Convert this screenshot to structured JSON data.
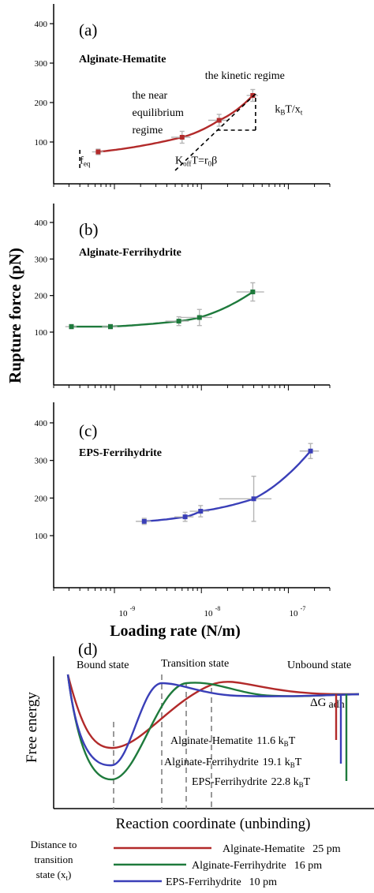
{
  "ylabel": "Rupture force (pN)",
  "xlabel": "Loading rate (N/m)",
  "yticks": [
    "100",
    "200",
    "300",
    "400"
  ],
  "xticks": [
    "10",
    "10",
    "10"
  ],
  "xtick_exps": [
    "-9",
    "-8",
    "-7"
  ],
  "colors": {
    "hematite": "#b22a2a",
    "ferrihydrite": "#1e7a3c",
    "eps": "#3a3fb8",
    "errorbar": "#b5b5b5"
  },
  "chart_data": [
    {
      "type": "scatter",
      "panel_label": "(a)",
      "title": "Alginate-Hematite",
      "xscale": "log",
      "xlim": [
        2e-10,
        3e-07
      ],
      "ylim": [
        20,
        450
      ],
      "series": [
        {
          "name": "Alginate-Hematite",
          "color": "#b22a2a",
          "x": [
            6.5e-10,
            6e-09,
            1.6e-08,
            3.9e-08
          ],
          "y": [
            75,
            112,
            155,
            218
          ],
          "yerr": [
            7,
            15,
            15,
            15
          ],
          "xerr_rel": [
            0.15,
            0.25,
            0.25,
            0.15
          ]
        }
      ],
      "annotations": [
        {
          "text": "the near",
          "x": 1.6e-09,
          "y": 210
        },
        {
          "text": "equilibrium",
          "x": 1.6e-09,
          "y": 166
        },
        {
          "text": "regime",
          "x": 1.6e-09,
          "y": 122
        },
        {
          "text": "the kinetic regime",
          "x": 1.1e-08,
          "y": 260
        },
        {
          "text": "f",
          "sub": "eq",
          "x": 4e-10,
          "y": 45
        },
        {
          "text": "K",
          "sub": "off",
          "rest": "T=r",
          "sub2": "0",
          "rest2": "β",
          "x": 5e-09,
          "y": 45
        },
        {
          "text": "k",
          "sub": "B",
          "rest": "T/x",
          "sub2": "t",
          "x": 7e-08,
          "y": 175
        }
      ]
    },
    {
      "type": "scatter",
      "panel_label": "(b)",
      "title": "Alginate-Ferrihydrite",
      "xscale": "log",
      "xlim": [
        2e-10,
        3e-07
      ],
      "ylim": [
        20,
        450
      ],
      "series": [
        {
          "name": "Alginate-Ferrihydrite",
          "color": "#1e7a3c",
          "x": [
            3.2e-10,
            9e-10,
            5.5e-09,
            9.5e-09,
            3.9e-08
          ],
          "y": [
            115,
            115,
            130,
            140,
            210
          ],
          "yerr": [
            6,
            6,
            12,
            22,
            25
          ],
          "xerr_rel": [
            0.15,
            0.2,
            0.3,
            0.4,
            0.35
          ]
        }
      ]
    },
    {
      "type": "scatter",
      "panel_label": "(c)",
      "title": "EPS-Ferrihydrite",
      "xscale": "log",
      "xlim": [
        2e-10,
        3e-07
      ],
      "ylim": [
        20,
        450
      ],
      "series": [
        {
          "name": "EPS-Ferrihydrite",
          "color": "#3a3fb8",
          "x": [
            2.2e-09,
            6.5e-09,
            9.8e-09,
            4e-08,
            1.8e-07
          ],
          "y": [
            138,
            150,
            165,
            198,
            325
          ],
          "yerr": [
            8,
            12,
            15,
            60,
            20
          ],
          "xerr_rel": [
            0.2,
            0.25,
            0.25,
            0.6,
            0.25
          ]
        }
      ]
    },
    {
      "type": "line",
      "panel_label": "(d)",
      "ylabel": "Free energy",
      "xlabel": "Reaction coordinate (unbinding)",
      "state_labels": [
        "Bound state",
        "Transition state",
        "Unbound state"
      ],
      "delta_g_label": "ΔG",
      "delta_g_sub": "adh",
      "series": [
        {
          "name": "Alginate-Hematite",
          "energy_value": "11.6 k",
          "energy_sub": "B",
          "energy_unit": "T",
          "distance": "25 pm",
          "color": "#b22a2a"
        },
        {
          "name": "Alginate-Ferrihydrite",
          "energy_value": "19.1 k",
          "energy_sub": "B",
          "energy_unit": "T",
          "distance": "16 pm",
          "color": "#1e7a3c"
        },
        {
          "name": "EPS-Ferrihydrite",
          "energy_value": "22.8 k",
          "energy_sub": "B",
          "energy_unit": "T",
          "distance": "10 pm",
          "color": "#3a3fb8"
        }
      ],
      "distance_label": [
        "Distance to",
        "transition",
        "state (x"
      ],
      "distance_label_sub": "t",
      "distance_label_end": ")"
    }
  ]
}
